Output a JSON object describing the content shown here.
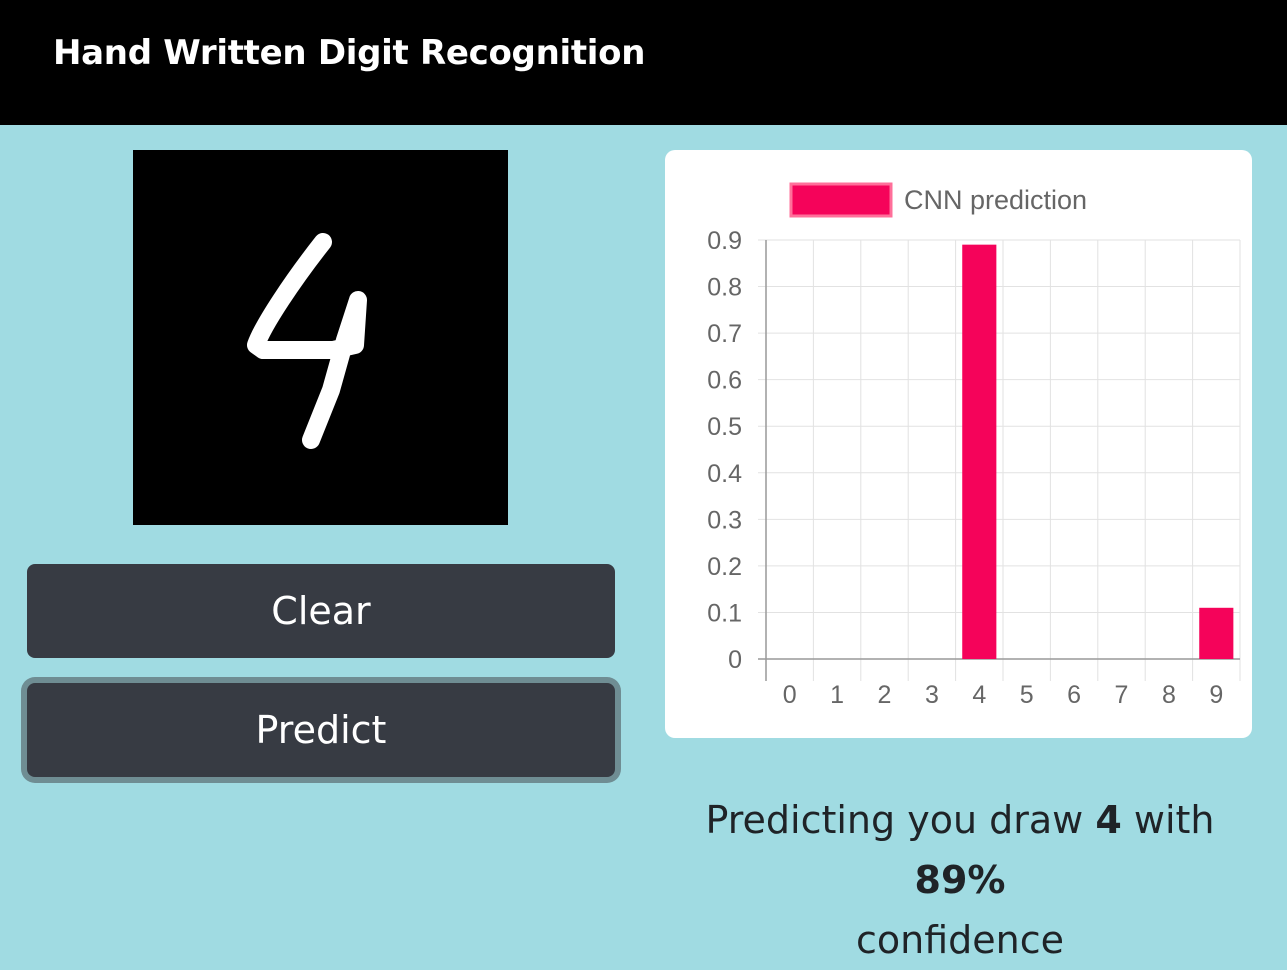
{
  "header": {
    "title": "Hand Written Digit Recognition"
  },
  "buttons": {
    "clear_label": "Clear",
    "predict_label": "Predict"
  },
  "result": {
    "prefix": "Predicting you draw",
    "digit": "4",
    "middle": "with",
    "confidence": "89%",
    "suffix": "confidence"
  },
  "chart_data": {
    "type": "bar",
    "categories": [
      "0",
      "1",
      "2",
      "3",
      "4",
      "5",
      "6",
      "7",
      "8",
      "9"
    ],
    "series": [
      {
        "name": "CNN prediction",
        "values": [
          0,
          0,
          0,
          0,
          0.89,
          0,
          0,
          0,
          0,
          0.11
        ]
      }
    ],
    "ylim": [
      0,
      0.9
    ],
    "yticks": [
      "0",
      "0.1",
      "0.2",
      "0.3",
      "0.4",
      "0.5",
      "0.6",
      "0.7",
      "0.8",
      "0.9"
    ],
    "title": "",
    "xlabel": "",
    "ylabel": "",
    "legend_position": "top",
    "grid": true,
    "bar_color": "#f5035a"
  }
}
